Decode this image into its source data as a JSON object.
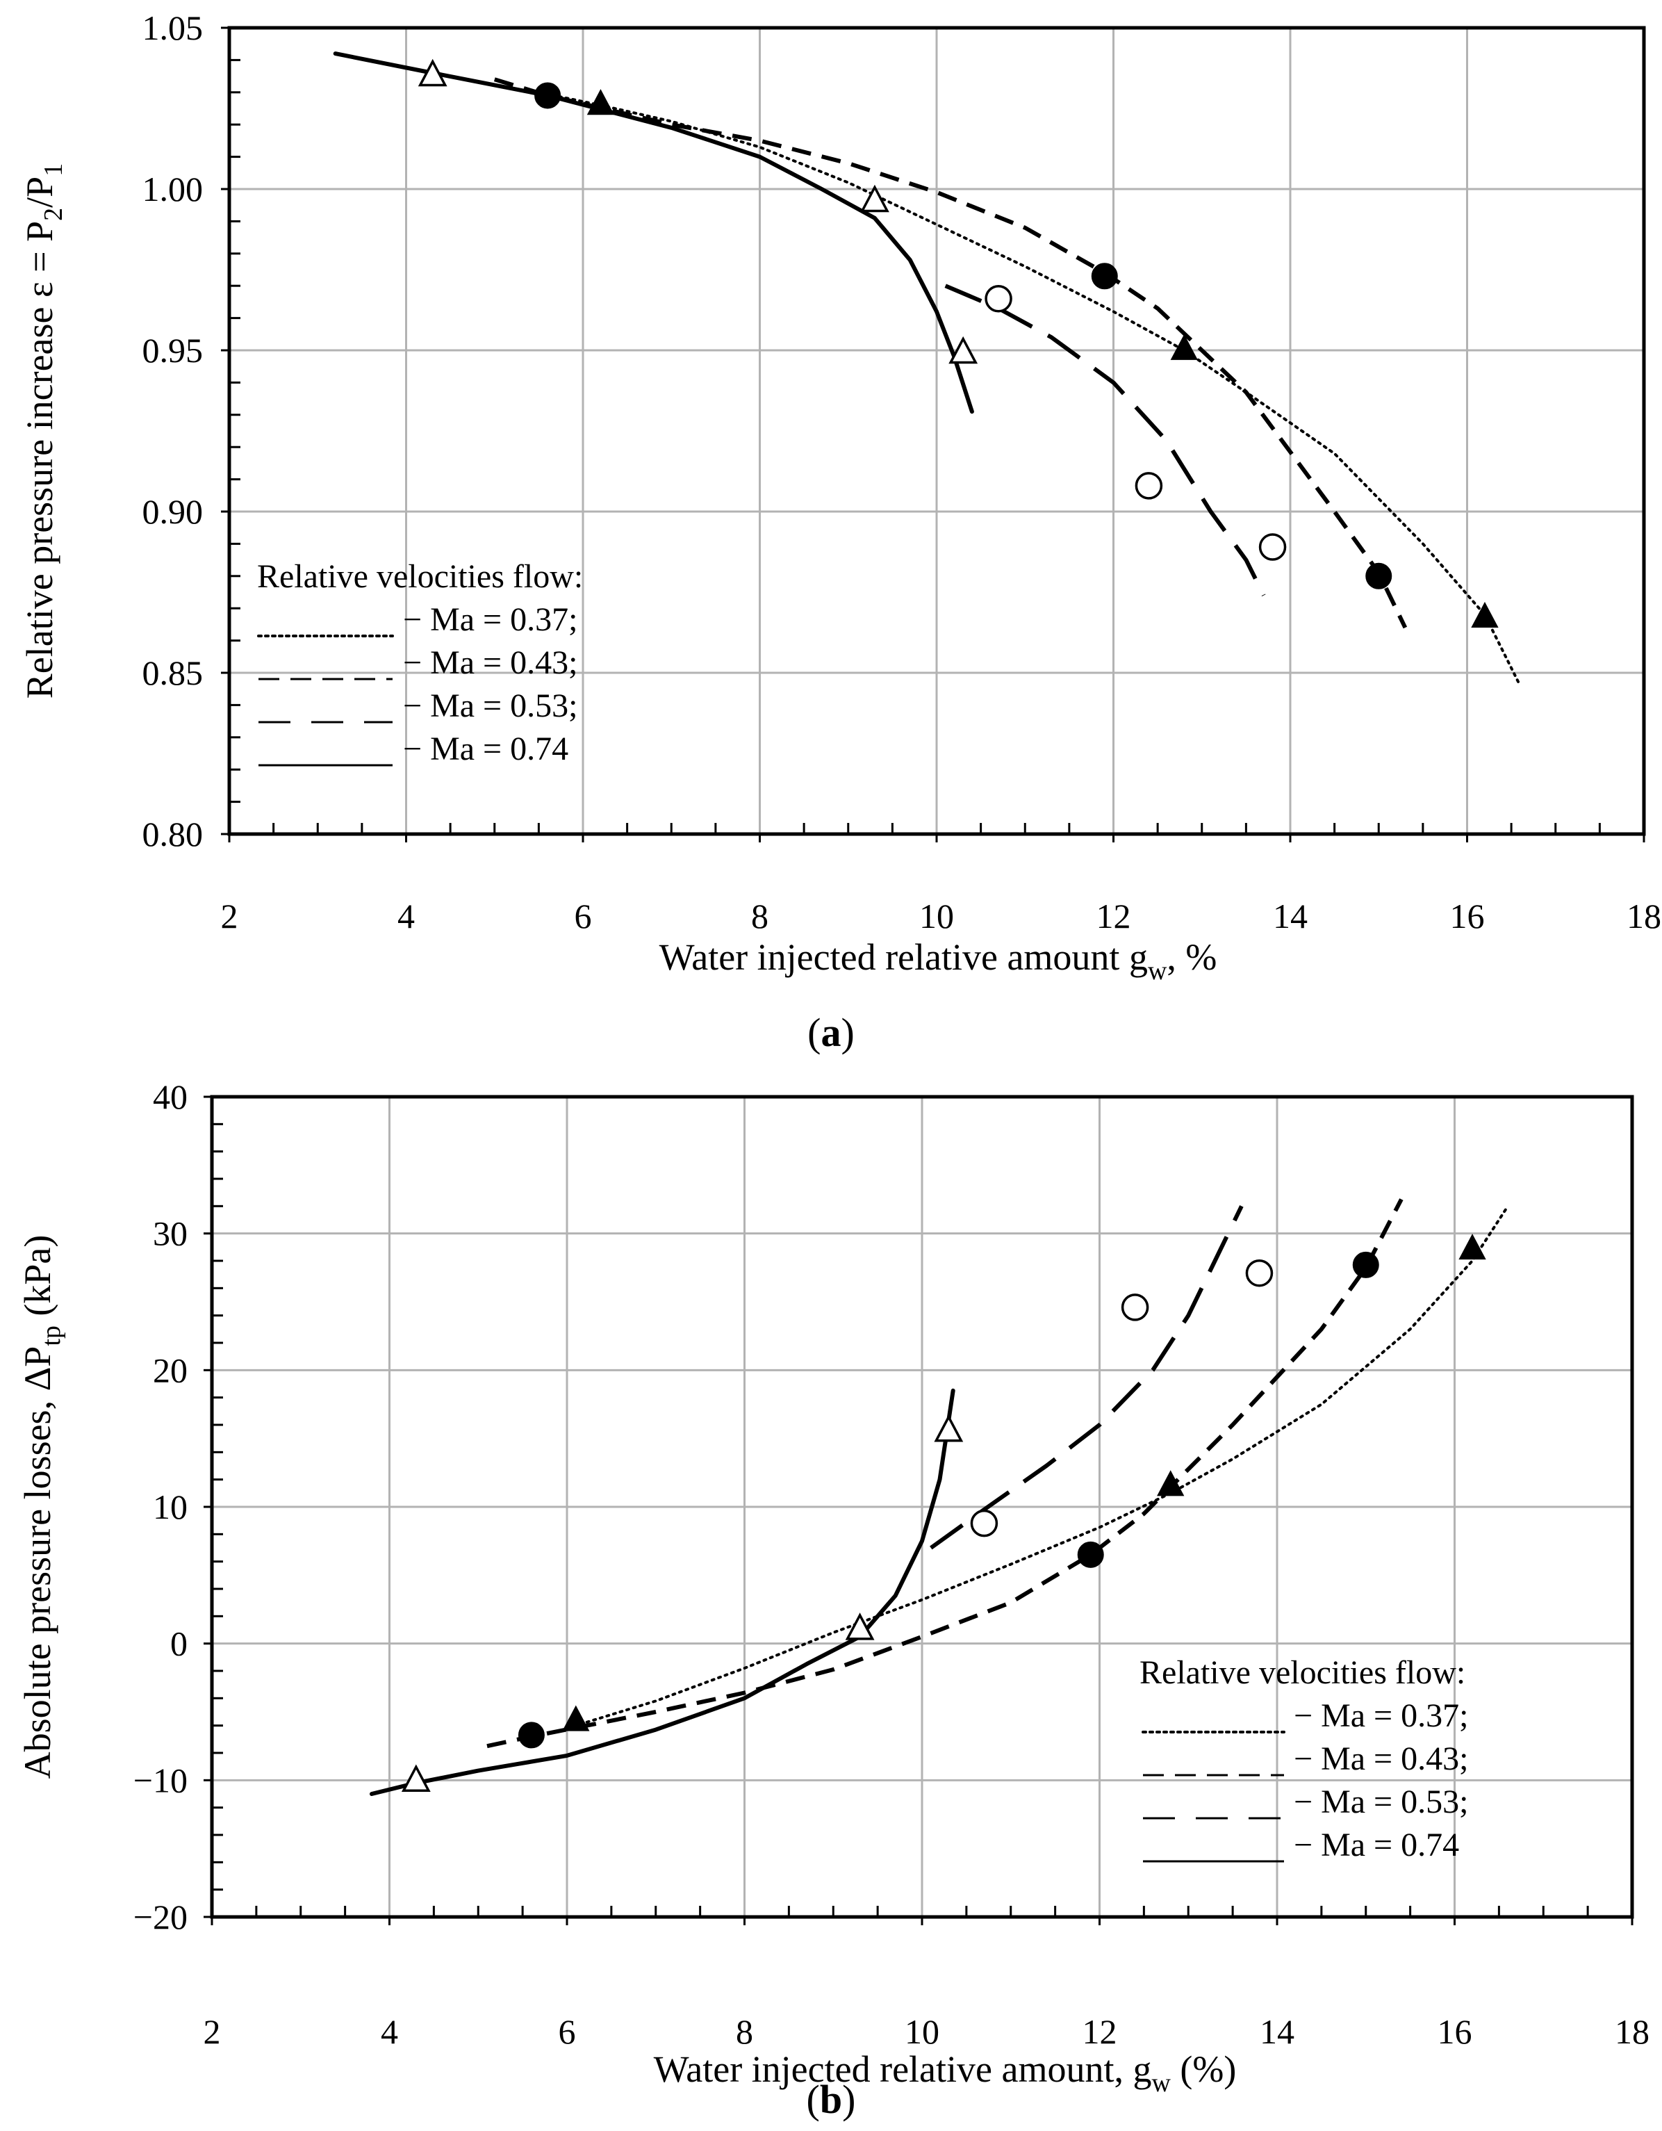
{
  "chart_data": [
    {
      "type": "line",
      "panel_label": "a",
      "ylabel": "Relative pressure increase ε = P",
      "ylabel_parts": [
        "Relative pressure increase ε = P",
        "2",
        "/P",
        "1"
      ],
      "xlabel": "Water injected relative amount  g",
      "xlabel_parts": [
        "Water injected relative amount  g",
        "w",
        ", %"
      ],
      "xlim": [
        2,
        18
      ],
      "ylim": [
        0.8,
        1.05
      ],
      "x_ticks": [
        2,
        4,
        6,
        8,
        10,
        12,
        14,
        16,
        18
      ],
      "y_ticks": [
        0.8,
        0.85,
        0.9,
        0.95,
        1.0,
        1.05
      ],
      "x_tick_labels": [
        "2",
        "4",
        "6",
        "8",
        "10",
        "12",
        "14",
        "16",
        "18"
      ],
      "y_tick_labels": [
        "0.80",
        "0.85",
        "0.90",
        "0.95",
        "1.00",
        "1.05"
      ],
      "grid": true,
      "legend_title": "Relative velocities flow:",
      "legend_position": "bottom-left",
      "series": [
        {
          "name": "Ma = 0.37",
          "label": "− Ma = 0.37;",
          "line_style": "dotted",
          "marker": "filled-triangle",
          "points": [
            [
              6.2,
              1.026
            ],
            [
              12.8,
              0.95
            ],
            [
              16.2,
              0.867
            ]
          ],
          "curve": [
            [
              5.5,
              1.03
            ],
            [
              6.2,
              1.026
            ],
            [
              7,
              1.021
            ],
            [
              8,
              1.013
            ],
            [
              9,
              1.002
            ],
            [
              10,
              0.989
            ],
            [
              11,
              0.976
            ],
            [
              12,
              0.962
            ],
            [
              12.8,
              0.95
            ],
            [
              13.5,
              0.937
            ],
            [
              14.5,
              0.918
            ],
            [
              15.5,
              0.89
            ],
            [
              16.2,
              0.868
            ],
            [
              16.6,
              0.846
            ]
          ]
        },
        {
          "name": "Ma = 0.43",
          "label": "− Ma = 0.43;",
          "line_style": "short-dash",
          "marker": "filled-circle",
          "points": [
            [
              5.6,
              1.029
            ],
            [
              11.9,
              0.973
            ],
            [
              15.0,
              0.88
            ]
          ],
          "curve": [
            [
              5.0,
              1.034
            ],
            [
              5.6,
              1.029
            ],
            [
              7,
              1.02
            ],
            [
              8,
              1.015
            ],
            [
              9,
              1.008
            ],
            [
              10,
              0.999
            ],
            [
              11,
              0.988
            ],
            [
              11.9,
              0.974
            ],
            [
              12.5,
              0.963
            ],
            [
              13.5,
              0.937
            ],
            [
              14.5,
              0.9
            ],
            [
              15.0,
              0.881
            ],
            [
              15.3,
              0.864
            ]
          ]
        },
        {
          "name": "Ma = 0.53",
          "label": "− Ma = 0.53;",
          "line_style": "long-dash",
          "marker": "open-circle",
          "points": [
            [
              10.7,
              0.966
            ],
            [
              12.4,
              0.908
            ],
            [
              13.8,
              0.889
            ]
          ],
          "curve": [
            [
              10.1,
              0.97
            ],
            [
              10.7,
              0.963
            ],
            [
              11.3,
              0.954
            ],
            [
              12,
              0.94
            ],
            [
              12.6,
              0.922
            ],
            [
              13.1,
              0.9
            ],
            [
              13.5,
              0.885
            ],
            [
              13.7,
              0.874
            ]
          ]
        },
        {
          "name": "Ma = 0.74",
          "label": "− Ma = 0.74",
          "line_style": "solid",
          "marker": "open-triangle",
          "points": [
            [
              4.3,
              1.035
            ],
            [
              9.3,
              0.996
            ],
            [
              10.3,
              0.949
            ]
          ],
          "curve": [
            [
              3.2,
              1.042
            ],
            [
              4.3,
              1.036
            ],
            [
              5.6,
              1.029
            ],
            [
              7,
              1.019
            ],
            [
              8,
              1.01
            ],
            [
              8.7,
              1.0
            ],
            [
              9.3,
              0.991
            ],
            [
              9.7,
              0.978
            ],
            [
              10.0,
              0.962
            ],
            [
              10.2,
              0.948
            ],
            [
              10.4,
              0.931
            ]
          ]
        }
      ]
    },
    {
      "type": "line",
      "panel_label": "b",
      "ylabel": "Absolute pressure losses, ΔP",
      "ylabel_parts": [
        "Absolute pressure losses, ΔP",
        "tp",
        " (kPa)"
      ],
      "xlabel": "Water injected relative amount, g",
      "xlabel_parts": [
        "Water injected relative amount, g",
        "w",
        " (%)"
      ],
      "xlim": [
        2,
        18
      ],
      "ylim": [
        -20,
        40
      ],
      "x_ticks": [
        2,
        4,
        6,
        8,
        10,
        12,
        14,
        16,
        18
      ],
      "y_ticks": [
        -20,
        -10,
        0,
        10,
        20,
        30,
        40
      ],
      "x_tick_labels": [
        "2",
        "4",
        "6",
        "8",
        "10",
        "12",
        "14",
        "16",
        "18"
      ],
      "y_tick_labels": [
        "−20",
        "−10",
        "0",
        "10",
        "20",
        "30",
        "40"
      ],
      "grid": true,
      "legend_title": "Relative velocities flow:",
      "legend_position": "bottom-right",
      "series": [
        {
          "name": "Ma = 0.37",
          "label": "− Ma = 0.37;",
          "line_style": "dotted",
          "marker": "filled-triangle",
          "points": [
            [
              6.1,
              -5.7
            ],
            [
              12.8,
              11.5
            ],
            [
              16.2,
              28.8
            ]
          ],
          "curve": [
            [
              6.0,
              -6.2
            ],
            [
              7,
              -4.2
            ],
            [
              8,
              -1.8
            ],
            [
              9,
              0.8
            ],
            [
              10,
              3.2
            ],
            [
              11,
              5.8
            ],
            [
              12,
              8.5
            ],
            [
              12.8,
              11.0
            ],
            [
              13.5,
              13.5
            ],
            [
              14.5,
              17.5
            ],
            [
              15.5,
              23.0
            ],
            [
              16.2,
              28.0
            ],
            [
              16.6,
              32.0
            ]
          ]
        },
        {
          "name": "Ma = 0.43",
          "label": "− Ma = 0.43;",
          "line_style": "short-dash",
          "marker": "filled-circle",
          "points": [
            [
              5.6,
              -6.7
            ],
            [
              11.9,
              6.5
            ],
            [
              15.0,
              27.7
            ]
          ],
          "curve": [
            [
              5.1,
              -7.5
            ],
            [
              5.6,
              -6.8
            ],
            [
              7,
              -5.0
            ],
            [
              8,
              -3.6
            ],
            [
              9,
              -1.9
            ],
            [
              10,
              0.5
            ],
            [
              11,
              3.0
            ],
            [
              11.9,
              6.5
            ],
            [
              12.5,
              9.5
            ],
            [
              13.5,
              16.0
            ],
            [
              14.5,
              23.0
            ],
            [
              15.0,
              27.5
            ],
            [
              15.4,
              32.5
            ]
          ]
        },
        {
          "name": "Ma = 0.53",
          "label": "− Ma = 0.53;",
          "line_style": "long-dash",
          "marker": "open-circle",
          "points": [
            [
              10.7,
              8.8
            ],
            [
              12.4,
              24.6
            ],
            [
              13.8,
              27.1
            ]
          ],
          "curve": [
            [
              10.1,
              7.0
            ],
            [
              10.7,
              9.8
            ],
            [
              11.4,
              13.0
            ],
            [
              12.0,
              16.0
            ],
            [
              12.6,
              20.0
            ],
            [
              13.0,
              24.0
            ],
            [
              13.3,
              28.0
            ],
            [
              13.6,
              32.0
            ]
          ]
        },
        {
          "name": "Ma = 0.74",
          "label": "− Ma = 0.74",
          "line_style": "solid",
          "marker": "open-triangle",
          "points": [
            [
              4.3,
              -10.1
            ],
            [
              9.3,
              1.0
            ],
            [
              10.3,
              15.5
            ]
          ],
          "curve": [
            [
              3.8,
              -11.0
            ],
            [
              4.3,
              -10.2
            ],
            [
              5,
              -9.3
            ],
            [
              6,
              -8.2
            ],
            [
              7,
              -6.3
            ],
            [
              8,
              -4.0
            ],
            [
              8.7,
              -1.5
            ],
            [
              9.3,
              0.5
            ],
            [
              9.7,
              3.5
            ],
            [
              10.0,
              7.5
            ],
            [
              10.2,
              12.0
            ],
            [
              10.35,
              18.5
            ]
          ]
        }
      ]
    }
  ]
}
